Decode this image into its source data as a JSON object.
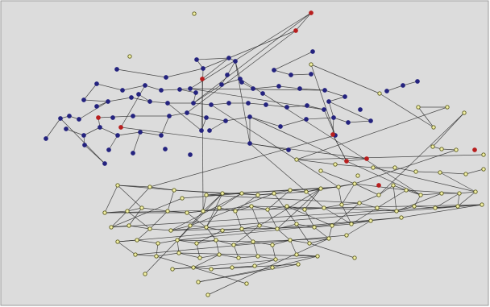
{
  "colors": {
    "canvas_background": "#dcdcdc",
    "frame": "#9a9a9a",
    "edge": "#2b2b2b",
    "blue_node_fill": "#24237f",
    "yellow_node_fill": "#f3f1a6",
    "yellow_node_stroke": "#5b5b1e",
    "red_node_fill": "#b81e1e"
  },
  "legend": [],
  "title": ""
}
